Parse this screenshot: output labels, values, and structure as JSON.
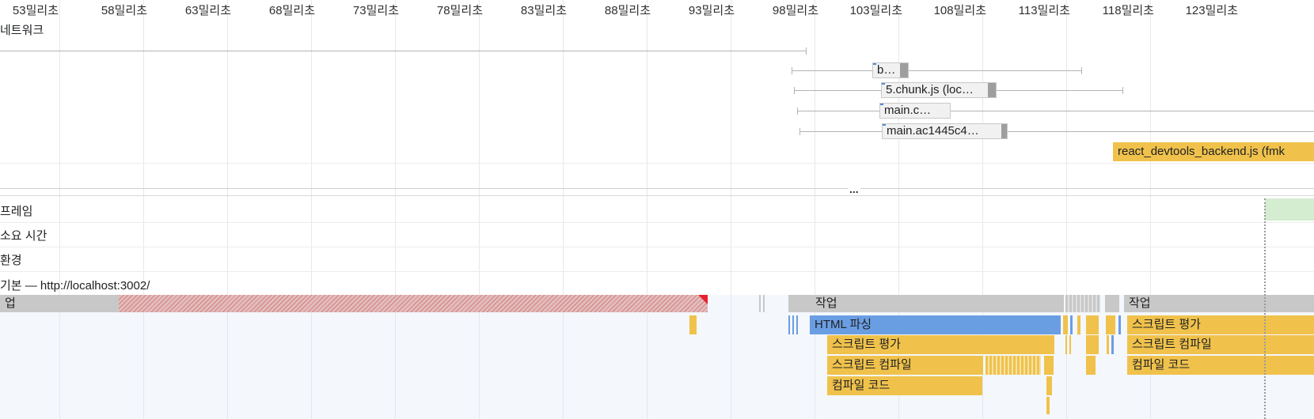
{
  "timeline": {
    "ticks": [
      "53밀리초",
      "58밀리초",
      "63밀리초",
      "68밀리초",
      "73밀리초",
      "78밀리초",
      "83밀리초",
      "88밀리초",
      "93밀리초",
      "98밀리초",
      "103밀리초",
      "108밀리초",
      "113밀리초",
      "118밀리초",
      "123밀리초"
    ]
  },
  "network": {
    "label": "네트워크",
    "requests": [
      "b…",
      "5.chunk.js (loc…",
      "main.c…",
      "main.ac1445c4…",
      "react_devtools_backend.js (fmk"
    ]
  },
  "splitter": "...",
  "tracks": {
    "frames": "프레임",
    "timings": "소요 시간",
    "environment": "환경",
    "main": "기본 — http://localhost:3002/"
  },
  "flame": {
    "task_left": "업",
    "task": "작업",
    "html_parse": "HTML 파싱",
    "eval_script": "스크립트 평가",
    "compile_script": "스크립트 컴파일",
    "compile_code": "컴파일 코드"
  },
  "colors": {
    "scripting": "#f0c24b",
    "loading": "#6a9ee3",
    "task": "#c8c8c8",
    "long_task": "#d9a0a0",
    "frame": "#d4ecd0"
  }
}
